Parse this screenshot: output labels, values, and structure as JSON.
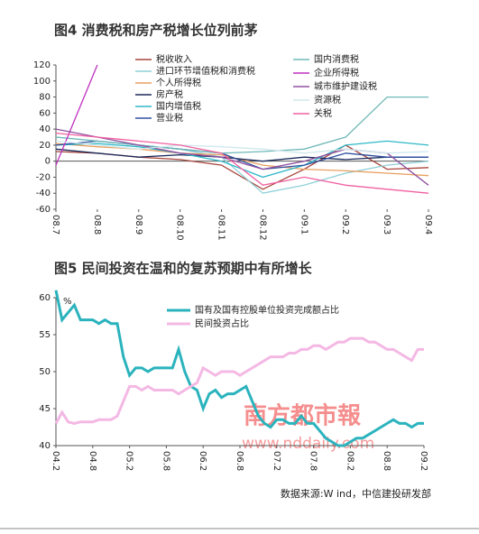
{
  "chart_data": [
    {
      "type": "line",
      "title": "图4 消费税和房产税增长位列前茅",
      "categories": [
        "08.7",
        "08.8",
        "08.9",
        "08.10",
        "08.11",
        "08.12",
        "09.1",
        "09.2",
        "09.3",
        "09.4"
      ],
      "ylim": [
        -60,
        120
      ],
      "yticks": [
        -60,
        -40,
        -20,
        0,
        20,
        40,
        60,
        80,
        100,
        120
      ],
      "grid": false,
      "series": [
        {
          "name": "税收收入",
          "color": "#a8453c",
          "values": [
            12,
            10,
            5,
            2,
            -5,
            -35,
            -10,
            20,
            -10,
            -8
          ]
        },
        {
          "name": "进口环节增值税和消费税",
          "color": "#8fd0d8",
          "values": [
            30,
            25,
            20,
            15,
            5,
            -40,
            -30,
            -15,
            -5,
            0
          ]
        },
        {
          "name": "个人所得税",
          "color": "#e8a060",
          "values": [
            22,
            18,
            15,
            10,
            8,
            -5,
            -10,
            -12,
            -15,
            -18
          ]
        },
        {
          "name": "房产税",
          "color": "#1a2b5a",
          "values": [
            15,
            10,
            5,
            8,
            5,
            0,
            5,
            2,
            5,
            5
          ]
        },
        {
          "name": "国内增值税",
          "color": "#30b8c8",
          "values": [
            20,
            22,
            18,
            10,
            0,
            -20,
            -5,
            20,
            25,
            20
          ]
        },
        {
          "name": "营业税",
          "color": "#3050a0",
          "values": [
            20,
            25,
            20,
            15,
            10,
            -10,
            -5,
            10,
            5,
            5
          ]
        },
        {
          "name": "国内消费税",
          "color": "#70b8b8",
          "values": [
            30,
            25,
            20,
            15,
            10,
            12,
            15,
            30,
            80,
            80
          ]
        },
        {
          "name": "企业所得税",
          "color": "#c030c0",
          "values": [
            -5,
            120,
            null,
            null,
            null,
            null,
            null,
            null,
            null,
            null
          ]
        },
        {
          "name": "城市维护建设税",
          "color": "#9050a0",
          "values": [
            40,
            30,
            20,
            10,
            5,
            -10,
            0,
            15,
            10,
            -30
          ]
        },
        {
          "name": "资源税",
          "color": "#cfe8ec",
          "values": [
            25,
            20,
            15,
            20,
            18,
            15,
            10,
            15,
            10,
            12
          ]
        },
        {
          "name": "关税",
          "color": "#f060a0",
          "values": [
            35,
            30,
            25,
            20,
            10,
            -30,
            -20,
            -30,
            -35,
            -40
          ]
        }
      ]
    },
    {
      "type": "line",
      "title": "图5 民间投资在温和的复苏预期中有所增长",
      "ylabel": "%",
      "categories": [
        "04.2",
        null,
        null,
        null,
        null,
        null,
        "04.8",
        null,
        null,
        null,
        null,
        null,
        "05.2",
        null,
        null,
        null,
        null,
        null,
        "05.8",
        null,
        null,
        null,
        null,
        null,
        "06.2",
        null,
        null,
        null,
        null,
        null,
        "06.8",
        null,
        null,
        null,
        null,
        null,
        "07.2",
        null,
        null,
        null,
        null,
        null,
        "07.8",
        null,
        null,
        null,
        null,
        null,
        "08.2",
        null,
        null,
        null,
        null,
        null,
        "08.8",
        null,
        null,
        null,
        null,
        null,
        "09.2"
      ],
      "ylim": [
        40,
        60
      ],
      "yticks": [
        40,
        45,
        50,
        55,
        60
      ],
      "grid": false,
      "series": [
        {
          "name": "国有及国有控股单位投资完成额占比",
          "color": "#2bb3bd",
          "width": 3,
          "values": [
            61,
            57,
            58,
            59,
            57,
            57,
            57,
            56.5,
            57,
            56.5,
            56.5,
            52,
            49.5,
            50.5,
            50.5,
            50,
            50.5,
            50.5,
            50.5,
            50.5,
            53,
            50,
            48,
            47.5,
            45,
            47,
            47.5,
            46.5,
            47,
            47,
            47.5,
            48,
            46,
            44,
            43,
            42.5,
            43.5,
            43.5,
            43,
            43,
            44,
            43,
            43,
            42,
            41,
            40.5,
            40,
            40,
            40.5,
            41,
            41,
            41.5,
            42,
            42.5,
            43,
            43.5,
            43,
            43,
            42.5,
            43,
            43
          ]
        },
        {
          "name": "民间投资占比",
          "color": "#f4b8e4",
          "width": 3,
          "values": [
            43,
            44.5,
            43.2,
            43,
            43.2,
            43.2,
            43.2,
            43.5,
            43.5,
            43.5,
            44,
            46,
            48,
            48,
            47.5,
            48,
            47.5,
            47.5,
            47.5,
            47.5,
            47,
            47.5,
            48,
            48.5,
            50.5,
            50,
            49.5,
            50,
            50,
            50,
            49.5,
            50,
            50.5,
            51,
            51.5,
            52,
            52,
            52,
            52.5,
            52.5,
            53,
            53,
            53.5,
            53.5,
            53,
            53.5,
            54,
            54,
            54.5,
            54.5,
            54.5,
            54,
            54,
            53.5,
            53,
            53,
            52.5,
            52,
            51.5,
            53,
            53
          ]
        }
      ]
    }
  ],
  "source": "数据来源:W ind，中信建投研发部",
  "watermark": [
    "南方都市報",
    "www.nddaily.com"
  ]
}
